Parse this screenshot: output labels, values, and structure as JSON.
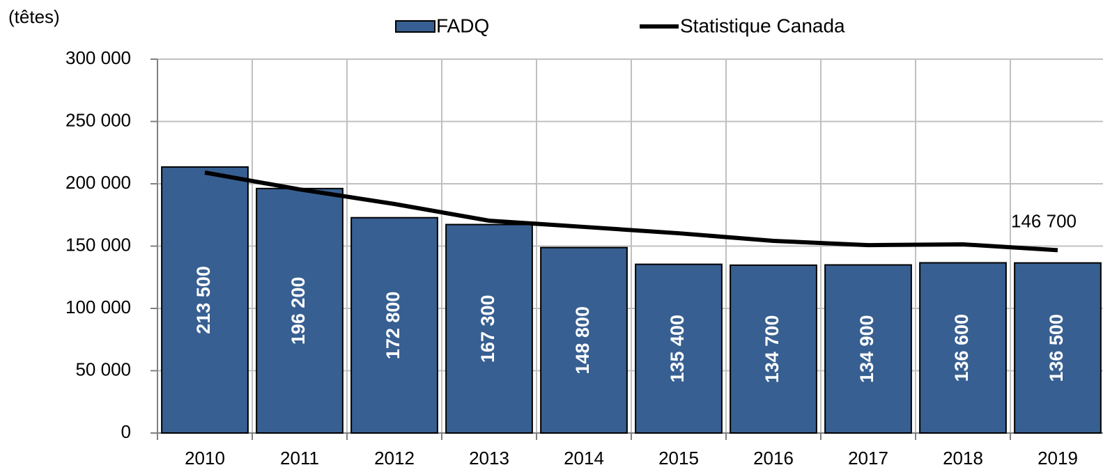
{
  "chart_data": {
    "type": "bar_line",
    "y_label": "(têtes)",
    "categories": [
      "2010",
      "2011",
      "2012",
      "2013",
      "2014",
      "2015",
      "2016",
      "2017",
      "2018",
      "2019"
    ],
    "series": [
      {
        "name": "FADQ",
        "type": "bar",
        "color": "#375f91",
        "values": [
          213500,
          196200,
          172800,
          167300,
          148800,
          135400,
          134700,
          134900,
          136600,
          136500
        ],
        "value_labels": [
          "213 500",
          "196 200",
          "172 800",
          "167 300",
          "148 800",
          "135 400",
          "134 700",
          "134 900",
          "136 600",
          "136 500"
        ]
      },
      {
        "name": "Statistique Canada",
        "type": "line",
        "color": "#000000",
        "values": [
          209000,
          195500,
          183800,
          170400,
          165400,
          160300,
          154200,
          150800,
          151400,
          146700
        ],
        "value_labels": [
          null,
          null,
          null,
          null,
          null,
          null,
          null,
          null,
          null,
          "146 700"
        ]
      }
    ],
    "ylim": [
      0,
      300000
    ],
    "yticks": [
      0,
      {
        "value": 50000,
        "label": "50 000"
      },
      {
        "value": 100000,
        "label": "100 000"
      },
      {
        "value": 150000,
        "label": "150 000"
      },
      {
        "value": 200000,
        "label": "200 000"
      },
      {
        "value": 250000,
        "label": "250 000"
      },
      {
        "value": 300000,
        "label": "300 000"
      }
    ],
    "grid": true,
    "legend": "top"
  }
}
